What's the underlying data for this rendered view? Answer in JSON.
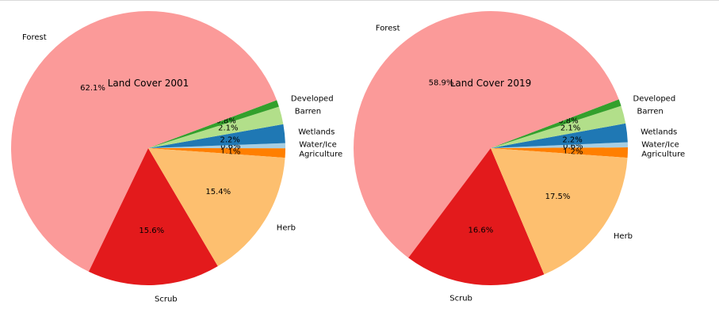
{
  "chart_data": [
    {
      "type": "pie",
      "title": "Land Cover 2001",
      "categories": [
        "Agriculture",
        "Water/Ice",
        "Wetlands",
        "Barren",
        "Developed",
        "Forest",
        "Scrub",
        "Herb"
      ],
      "values": [
        1.1,
        0.6,
        2.2,
        2.1,
        0.8,
        62.1,
        15.6,
        15.4
      ],
      "value_labels": [
        "1.1%",
        "0.6%",
        "2.2%",
        "2.1%",
        "0.8%",
        "62.1%",
        "15.6%",
        "15.4%"
      ],
      "colors": [
        "#ff7f00",
        "#a6cee3",
        "#1f78b4",
        "#b2df8a",
        "#33a02c",
        "#fb9a99",
        "#e31a1c",
        "#fdbf6f"
      ],
      "start_angle_deg": -4,
      "direction": "counterclockwise"
    },
    {
      "type": "pie",
      "title": "Land Cover 2019",
      "categories": [
        "Agriculture",
        "Water/Ice",
        "Wetlands",
        "Barren",
        "Developed",
        "Forest",
        "Scrub",
        "Herb"
      ],
      "values": [
        1.2,
        0.6,
        2.2,
        2.1,
        0.8,
        58.9,
        16.6,
        17.5
      ],
      "value_labels": [
        "1.2%",
        "0.6%",
        "2.2%",
        "2.1%",
        "0.8%",
        "58.9%",
        "16.6%",
        "17.5%"
      ],
      "colors": [
        "#ff7f00",
        "#a6cee3",
        "#1f78b4",
        "#b2df8a",
        "#33a02c",
        "#fb9a99",
        "#e31a1c",
        "#fdbf6f"
      ],
      "start_angle_deg": -4,
      "direction": "counterclockwise"
    }
  ]
}
